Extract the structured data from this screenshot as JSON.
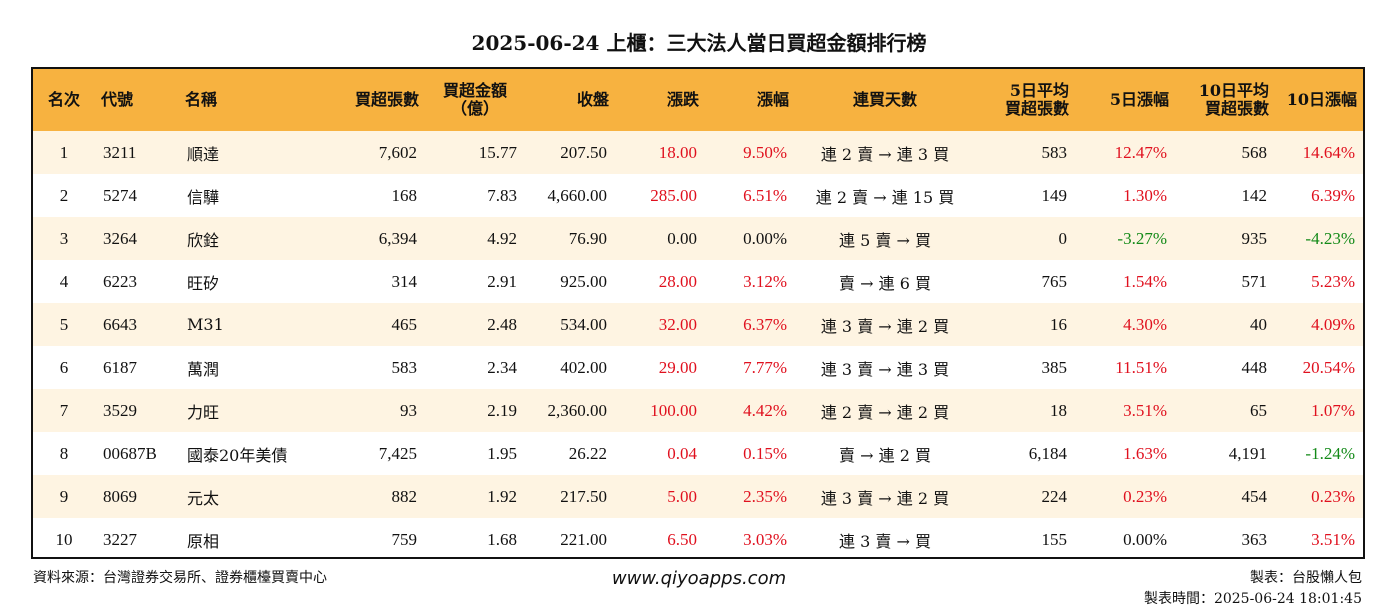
{
  "title": "2025-06-24 上櫃：三大法人當日買超金額排行榜",
  "headers": [
    {
      "line1": "名次",
      "line2": ""
    },
    {
      "line1": "代號",
      "line2": ""
    },
    {
      "line1": "名稱",
      "line2": ""
    },
    {
      "line1": "買超張數",
      "line2": ""
    },
    {
      "line1": "買超金額",
      "line2": "（億）"
    },
    {
      "line1": "收盤",
      "line2": ""
    },
    {
      "line1": "漲跌",
      "line2": ""
    },
    {
      "line1": "漲幅",
      "line2": ""
    },
    {
      "line1": "連買天數",
      "line2": ""
    },
    {
      "line1": "5日平均",
      "line2": "買超張數"
    },
    {
      "line1": "5日漲幅",
      "line2": ""
    },
    {
      "line1": "10日平均",
      "line2": "買超張數"
    },
    {
      "line1": "10日漲幅",
      "line2": ""
    }
  ],
  "rows": [
    {
      "rank": "1",
      "code": "3211",
      "name": "順達",
      "buy_lots": "7,602",
      "amount": "15.77",
      "close": "207.50",
      "change": "18.00",
      "change_color": "red",
      "pct": "9.50%",
      "pct_color": "red",
      "streak": "連 2 賣 → 連 3 買",
      "avg5": "583",
      "pct5": "12.47%",
      "pct5_color": "red",
      "avg10": "568",
      "pct10": "14.64%",
      "pct10_color": "red"
    },
    {
      "rank": "2",
      "code": "5274",
      "name": "信驊",
      "buy_lots": "168",
      "amount": "7.83",
      "close": "4,660.00",
      "change": "285.00",
      "change_color": "red",
      "pct": "6.51%",
      "pct_color": "red",
      "streak": "連 2 賣 → 連 15 買",
      "avg5": "149",
      "pct5": "1.30%",
      "pct5_color": "red",
      "avg10": "142",
      "pct10": "6.39%",
      "pct10_color": "red"
    },
    {
      "rank": "3",
      "code": "3264",
      "name": "欣銓",
      "buy_lots": "6,394",
      "amount": "4.92",
      "close": "76.90",
      "change": "0.00",
      "change_color": "black",
      "pct": "0.00%",
      "pct_color": "black",
      "streak": "連 5 賣 → 買",
      "avg5": "0",
      "pct5": "-3.27%",
      "pct5_color": "green",
      "avg10": "935",
      "pct10": "-4.23%",
      "pct10_color": "green"
    },
    {
      "rank": "4",
      "code": "6223",
      "name": "旺矽",
      "buy_lots": "314",
      "amount": "2.91",
      "close": "925.00",
      "change": "28.00",
      "change_color": "red",
      "pct": "3.12%",
      "pct_color": "red",
      "streak": "賣 → 連 6 買",
      "avg5": "765",
      "pct5": "1.54%",
      "pct5_color": "red",
      "avg10": "571",
      "pct10": "5.23%",
      "pct10_color": "red"
    },
    {
      "rank": "5",
      "code": "6643",
      "name": "M31",
      "buy_lots": "465",
      "amount": "2.48",
      "close": "534.00",
      "change": "32.00",
      "change_color": "red",
      "pct": "6.37%",
      "pct_color": "red",
      "streak": "連 3 賣 → 連 2 買",
      "avg5": "16",
      "pct5": "4.30%",
      "pct5_color": "red",
      "avg10": "40",
      "pct10": "4.09%",
      "pct10_color": "red"
    },
    {
      "rank": "6",
      "code": "6187",
      "name": "萬潤",
      "buy_lots": "583",
      "amount": "2.34",
      "close": "402.00",
      "change": "29.00",
      "change_color": "red",
      "pct": "7.77%",
      "pct_color": "red",
      "streak": "連 3 賣 → 連 3 買",
      "avg5": "385",
      "pct5": "11.51%",
      "pct5_color": "red",
      "avg10": "448",
      "pct10": "20.54%",
      "pct10_color": "red"
    },
    {
      "rank": "7",
      "code": "3529",
      "name": "力旺",
      "buy_lots": "93",
      "amount": "2.19",
      "close": "2,360.00",
      "change": "100.00",
      "change_color": "red",
      "pct": "4.42%",
      "pct_color": "red",
      "streak": "連 2 賣 → 連 2 買",
      "avg5": "18",
      "pct5": "3.51%",
      "pct5_color": "red",
      "avg10": "65",
      "pct10": "1.07%",
      "pct10_color": "red"
    },
    {
      "rank": "8",
      "code": "00687B",
      "name": "國泰20年美債",
      "buy_lots": "7,425",
      "amount": "1.95",
      "close": "26.22",
      "change": "0.04",
      "change_color": "red",
      "pct": "0.15%",
      "pct_color": "red",
      "streak": "賣 → 連 2 買",
      "avg5": "6,184",
      "pct5": "1.63%",
      "pct5_color": "red",
      "avg10": "4,191",
      "pct10": "-1.24%",
      "pct10_color": "green"
    },
    {
      "rank": "9",
      "code": "8069",
      "name": "元太",
      "buy_lots": "882",
      "amount": "1.92",
      "close": "217.50",
      "change": "5.00",
      "change_color": "red",
      "pct": "2.35%",
      "pct_color": "red",
      "streak": "連 3 賣 → 連 2 買",
      "avg5": "224",
      "pct5": "0.23%",
      "pct5_color": "red",
      "avg10": "454",
      "pct10": "0.23%",
      "pct10_color": "red"
    },
    {
      "rank": "10",
      "code": "3227",
      "name": "原相",
      "buy_lots": "759",
      "amount": "1.68",
      "close": "221.00",
      "change": "6.50",
      "change_color": "red",
      "pct": "3.03%",
      "pct_color": "red",
      "streak": "連 3 賣 → 買",
      "avg5": "155",
      "pct5": "0.00%",
      "pct5_color": "black",
      "avg10": "363",
      "pct10": "3.51%",
      "pct10_color": "red"
    }
  ],
  "footer": {
    "source": "資料來源：台灣證券交易所、證券櫃檯買賣中心",
    "website": "www.qiyoapps.com",
    "maker": "製表：台股懶人包",
    "made_time": "製表時間：2025-06-24 18:01:45"
  },
  "colors": {
    "header_bg": "#f7b240",
    "row_alt": "#fef4e2",
    "up": "#e0101e",
    "down": "#138a18"
  }
}
